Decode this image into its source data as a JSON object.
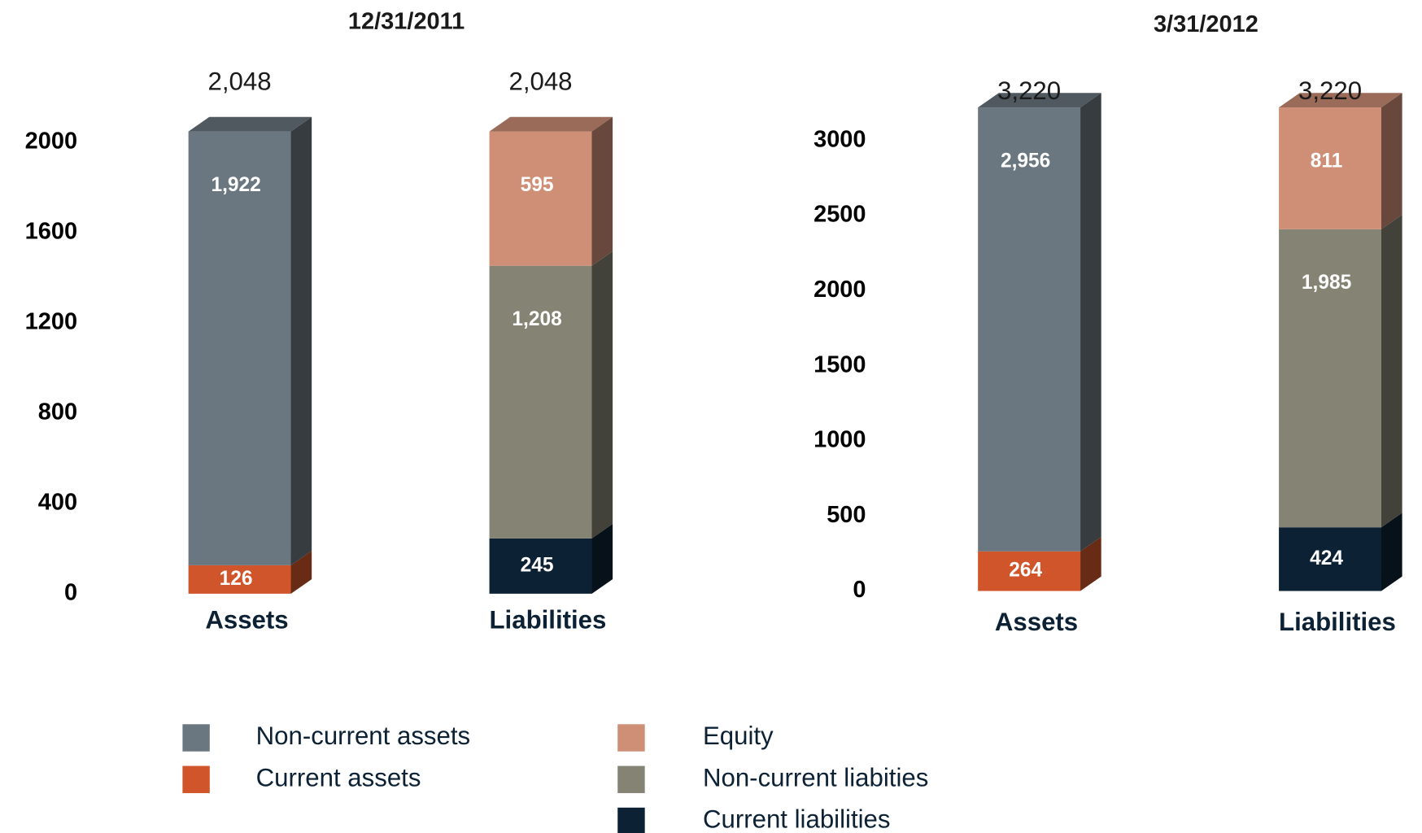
{
  "chart_data": [
    {
      "type": "bar",
      "stacked": true,
      "title": "12/31/2011",
      "categories": [
        "Assets",
        "Liabilities"
      ],
      "ylim": [
        0,
        2000
      ],
      "yticks": [
        0,
        400,
        800,
        1200,
        1600,
        2000
      ],
      "grid": false,
      "totals": [
        2048,
        2048
      ],
      "total_labels": [
        "2,048",
        "2,048"
      ],
      "series": [
        {
          "name": "Current assets",
          "color": "#d0552a",
          "values": [
            126,
            null
          ],
          "value_labels": [
            "126",
            null
          ]
        },
        {
          "name": "Non-current assets",
          "color": "#6b7780",
          "values": [
            1922,
            null
          ],
          "value_labels": [
            "1,922",
            null
          ]
        },
        {
          "name": "Current liabilities",
          "color": "#0c2134",
          "values": [
            null,
            245
          ],
          "value_labels": [
            null,
            "245"
          ]
        },
        {
          "name": "Non-current liabities",
          "color": "#858474",
          "values": [
            null,
            1208
          ],
          "value_labels": [
            null,
            "1,208"
          ]
        },
        {
          "name": "Equity",
          "color": "#cf8f77",
          "values": [
            null,
            595
          ],
          "value_labels": [
            null,
            "595"
          ]
        }
      ]
    },
    {
      "type": "bar",
      "stacked": true,
      "title": "3/31/2012",
      "categories": [
        "Assets",
        "Liabilities"
      ],
      "ylim": [
        0,
        3000
      ],
      "yticks": [
        0,
        500,
        1000,
        1500,
        2000,
        2500,
        3000
      ],
      "grid": false,
      "totals": [
        3220,
        3220
      ],
      "total_labels": [
        "3,220",
        "3,220"
      ],
      "series": [
        {
          "name": "Current assets",
          "color": "#d0552a",
          "values": [
            264,
            null
          ],
          "value_labels": [
            "264",
            null
          ]
        },
        {
          "name": "Non-current assets",
          "color": "#6b7780",
          "values": [
            2956,
            null
          ],
          "value_labels": [
            "2,956",
            null
          ]
        },
        {
          "name": "Current liabilities",
          "color": "#0c2134",
          "values": [
            null,
            424
          ],
          "value_labels": [
            null,
            "424"
          ]
        },
        {
          "name": "Non-current liabities",
          "color": "#858474",
          "values": [
            null,
            1985
          ],
          "value_labels": [
            null,
            "1,985"
          ]
        },
        {
          "name": "Equity",
          "color": "#cf8f77",
          "values": [
            null,
            811
          ],
          "value_labels": [
            null,
            "811"
          ]
        }
      ]
    }
  ]
}
